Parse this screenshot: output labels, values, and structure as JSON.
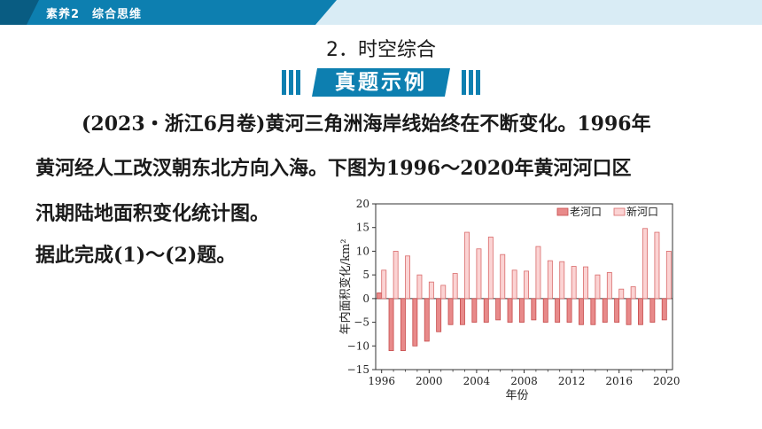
{
  "header": {
    "breadcrumb": "素养2　综合思维"
  },
  "section": {
    "title": "2．时空综合"
  },
  "banner": {
    "label": "真题示例"
  },
  "question": {
    "line1": "(2023・浙江6月卷)黄河三角洲海岸线始终在不断变化。1996年",
    "line2": "黄河经人工改汊朝东北方向入海。下图为1996～2020年黄河河口区",
    "line3": "汛期陆地面积变化统计图。",
    "line4": "据此完成(1)～(2)题。"
  },
  "colors": {
    "brand": "#0d7fb0",
    "old_river": "#e88a8a",
    "new_river": "#fbd3d3",
    "topbar_bg": "#d9ecf5"
  },
  "chart_data": {
    "type": "bar",
    "ylabel": "年内面积变化/km²",
    "xlabel": "年份",
    "ylim": [
      -15,
      20
    ],
    "yticks": [
      20,
      15,
      10,
      5,
      0,
      -5,
      -10,
      -15
    ],
    "xticks": [
      1996,
      2000,
      2004,
      2008,
      2012,
      2016,
      2020
    ],
    "legend_position": "top-right",
    "categories": [
      1996,
      1997,
      1998,
      1999,
      2000,
      2001,
      2002,
      2003,
      2004,
      2005,
      2006,
      2007,
      2008,
      2009,
      2010,
      2011,
      2012,
      2013,
      2014,
      2015,
      2016,
      2017,
      2018,
      2019,
      2020
    ],
    "series": [
      {
        "name": "老河口",
        "values": [
          1.2,
          -11,
          -11,
          -10,
          -9,
          -7,
          -5.5,
          -5.5,
          -5,
          -5,
          -4.5,
          -5,
          -5,
          -4.5,
          -5,
          -5,
          -5,
          -5.5,
          -5.5,
          -5,
          -5,
          -5.5,
          -5.5,
          -5,
          -4.5
        ]
      },
      {
        "name": "新河口",
        "values": [
          6,
          10,
          9,
          5,
          3.5,
          2.8,
          5.3,
          14,
          10.5,
          13,
          9.3,
          6,
          5.8,
          11,
          8,
          7.8,
          6.8,
          6.7,
          5,
          5.5,
          2,
          2.5,
          14.8,
          14,
          10
        ]
      }
    ]
  }
}
